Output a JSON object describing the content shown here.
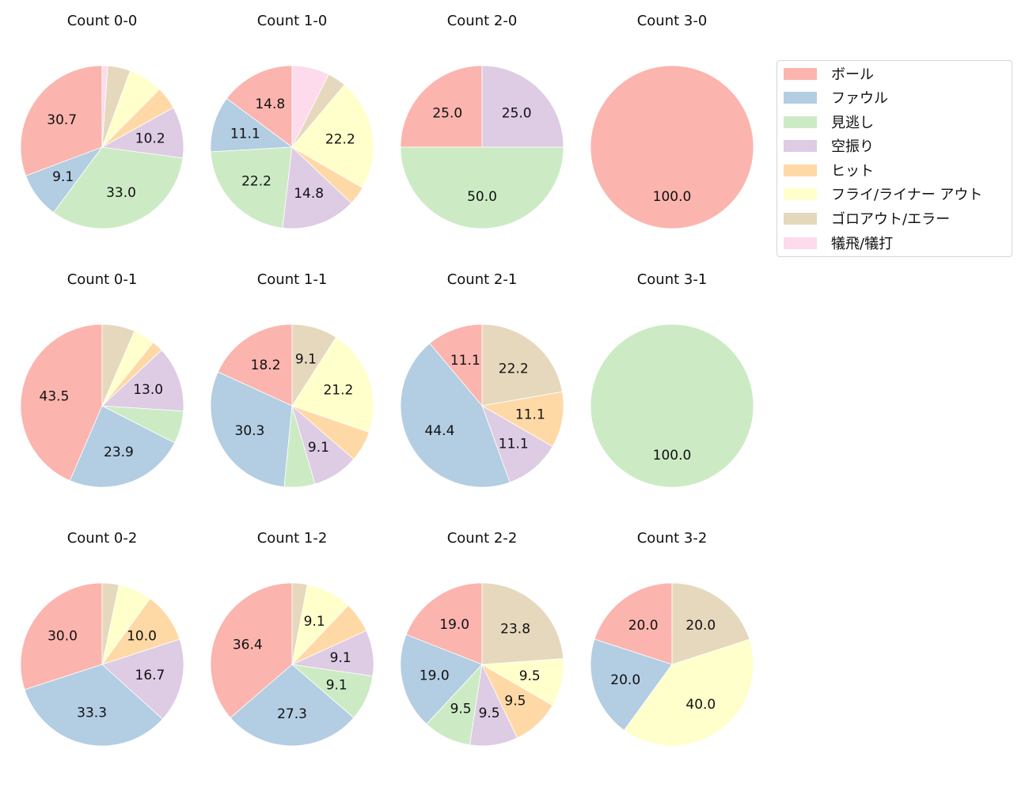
{
  "chart_data": {
    "type": "pie",
    "title": "",
    "legend": {
      "position": "right",
      "entries": [
        {
          "label": "ボール",
          "color": "#fbb4ae"
        },
        {
          "label": "ファウル",
          "color": "#b3cde3"
        },
        {
          "label": "見逃し",
          "color": "#ccebc5"
        },
        {
          "label": "空振り",
          "color": "#decbe4"
        },
        {
          "label": "ヒット",
          "color": "#fed9a6"
        },
        {
          "label": "フライ/ライナー アウト",
          "color": "#ffffcc"
        },
        {
          "label": "ゴロアウト/エラー",
          "color": "#e5d8bd"
        },
        {
          "label": "犠飛/犠打",
          "color": "#fddaec"
        }
      ]
    },
    "categories": [
      "ボール",
      "ファウル",
      "見逃し",
      "空振り",
      "ヒット",
      "フライ/ライナー アウト",
      "ゴロアウト/エラー",
      "犠飛/犠打"
    ],
    "label_threshold_note": "slices below ~8% are unlabeled",
    "panels": [
      {
        "title": "Count 0-0",
        "values": [
          30.7,
          9.1,
          33.0,
          10.2,
          4.5,
          6.8,
          4.5,
          1.1
        ]
      },
      {
        "title": "Count 1-0",
        "values": [
          14.8,
          11.1,
          22.2,
          14.8,
          3.7,
          22.2,
          3.7,
          7.4
        ]
      },
      {
        "title": "Count 2-0",
        "values": [
          25.0,
          0,
          50.0,
          25.0,
          0,
          0,
          0,
          0
        ]
      },
      {
        "title": "Count 3-0",
        "values": [
          100.0,
          0,
          0,
          0,
          0,
          0,
          0,
          0
        ]
      },
      {
        "title": "Count 0-1",
        "values": [
          43.5,
          23.9,
          6.5,
          13.0,
          2.2,
          4.3,
          6.5,
          0
        ]
      },
      {
        "title": "Count 1-1",
        "values": [
          18.2,
          30.3,
          6.1,
          9.1,
          6.1,
          21.2,
          9.1,
          0
        ]
      },
      {
        "title": "Count 2-1",
        "values": [
          11.1,
          44.4,
          0,
          11.1,
          11.1,
          0,
          22.2,
          0
        ]
      },
      {
        "title": "Count 3-1",
        "values": [
          0,
          0,
          100.0,
          0,
          0,
          0,
          0,
          0
        ]
      },
      {
        "title": "Count 0-2",
        "values": [
          30.0,
          33.3,
          0,
          16.7,
          10.0,
          6.7,
          3.3,
          0
        ]
      },
      {
        "title": "Count 1-2",
        "values": [
          36.4,
          27.3,
          9.1,
          9.1,
          6.1,
          9.1,
          3.0,
          0
        ]
      },
      {
        "title": "Count 2-2",
        "values": [
          19.0,
          19.0,
          9.5,
          9.5,
          9.5,
          9.5,
          23.8,
          0
        ]
      },
      {
        "title": "Count 3-2",
        "values": [
          20.0,
          20.0,
          0,
          0,
          0,
          40.0,
          20.0,
          0
        ]
      }
    ],
    "labels": [
      [
        "30.7",
        "9.1",
        "33.0",
        "10.2",
        "",
        "",
        "",
        ""
      ],
      [
        "14.8",
        "11.1",
        "22.2",
        "14.8",
        "",
        "22.2",
        "",
        ""
      ],
      [
        "25.0",
        "",
        "50.0",
        "25.0",
        "",
        "",
        "",
        ""
      ],
      [
        "100.0",
        "",
        "",
        "",
        "",
        "",
        "",
        ""
      ],
      [
        "43.5",
        "23.9",
        "",
        "13.0",
        "",
        "",
        "",
        ""
      ],
      [
        "18.2",
        "30.3",
        "",
        "9.1",
        "",
        "21.2",
        "9.1",
        ""
      ],
      [
        "11.1",
        "44.4",
        "",
        "11.1",
        "11.1",
        "",
        "22.2",
        ""
      ],
      [
        "",
        "",
        "100.0",
        "",
        "",
        "",
        "",
        ""
      ],
      [
        "30.0",
        "33.3",
        "",
        "16.7",
        "10.0",
        "",
        "",
        ""
      ],
      [
        "36.4",
        "27.3",
        "9.1",
        "9.1",
        "",
        "9.1",
        "",
        ""
      ],
      [
        "19.0",
        "19.0",
        "9.5",
        "9.5",
        "9.5",
        "9.5",
        "23.8",
        ""
      ],
      [
        "20.0",
        "20.0",
        "",
        "",
        "",
        "40.0",
        "20.0",
        ""
      ]
    ]
  },
  "panels": [
    {
      "title": "Count 0-0"
    },
    {
      "title": "Count 1-0"
    },
    {
      "title": "Count 2-0"
    },
    {
      "title": "Count 3-0"
    },
    {
      "title": "Count 0-1"
    },
    {
      "title": "Count 1-1"
    },
    {
      "title": "Count 2-1"
    },
    {
      "title": "Count 3-1"
    },
    {
      "title": "Count 0-2"
    },
    {
      "title": "Count 1-2"
    },
    {
      "title": "Count 2-2"
    },
    {
      "title": "Count 3-2"
    }
  ],
  "legend": {
    "items": [
      {
        "label": "ボール"
      },
      {
        "label": "ファウル"
      },
      {
        "label": "見逃し"
      },
      {
        "label": "空振り"
      },
      {
        "label": "ヒット"
      },
      {
        "label": "フライ/ライナー アウト"
      },
      {
        "label": "ゴロアウト/エラー"
      },
      {
        "label": "犠飛/犠打"
      }
    ]
  }
}
